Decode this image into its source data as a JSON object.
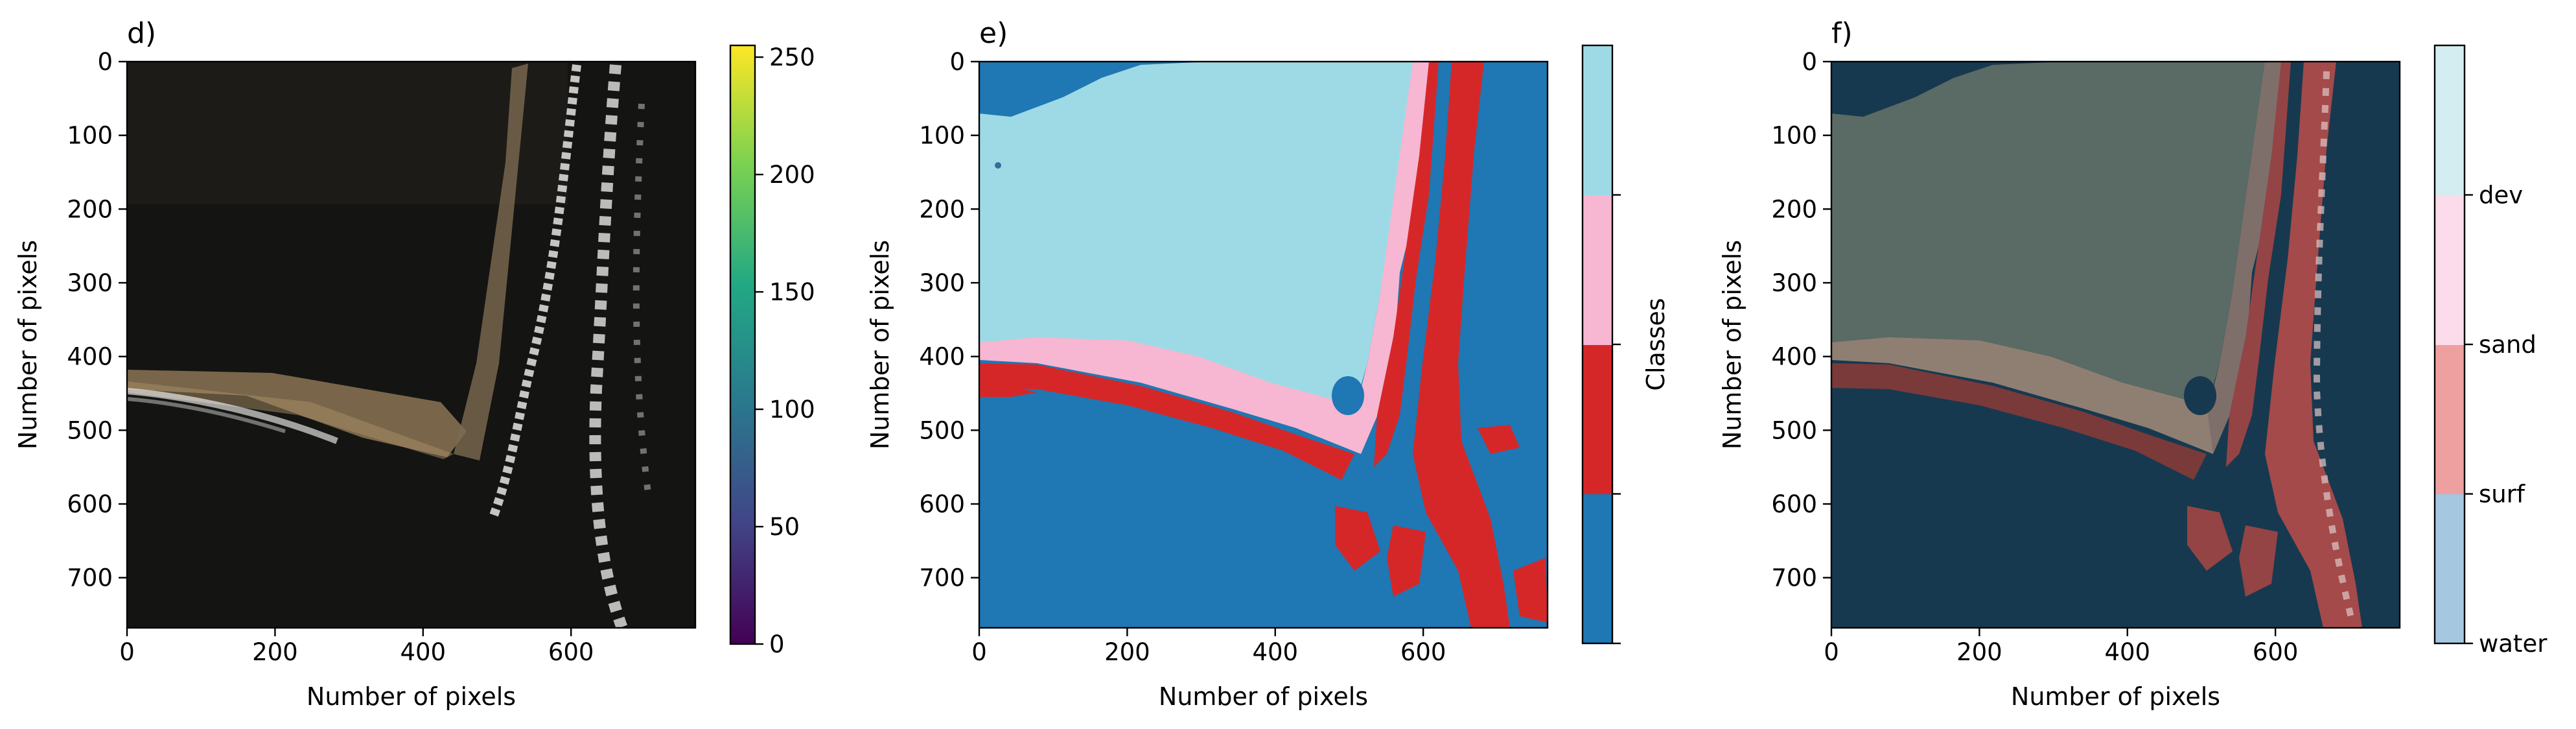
{
  "colors": {
    "water": "#1f77b4",
    "surf": "#d62728",
    "sand": "#f7b6d2",
    "dev": "#9edae5",
    "overlay_water": "#a6c7e0",
    "overlay_surf": "#ee9f9f",
    "overlay_sand": "#fcdbea",
    "overlay_dev": "#d4edf1",
    "photo_dark": "#141412",
    "photo_beach": "#8b7455",
    "photo_surf": "#d8d8d8",
    "viridis_stops": [
      "#440154",
      "#414487",
      "#2a788e",
      "#22a884",
      "#7ad151",
      "#fde725"
    ]
  },
  "chart_data": [
    {
      "type": "heatmap",
      "panel": "d)",
      "title": "d)",
      "xlabel": "Number of pixels",
      "ylabel": "Number of pixels",
      "xlim": [
        0,
        768
      ],
      "ylim": [
        768,
        0
      ],
      "xticks": [
        "0",
        "200",
        "400",
        "600"
      ],
      "yticks": [
        "0",
        "100",
        "200",
        "300",
        "400",
        "500",
        "600",
        "700"
      ],
      "colorbar": {
        "colormap": "viridis",
        "range": [
          0,
          255
        ],
        "ticks": [
          "0",
          "50",
          "100",
          "150",
          "200",
          "250"
        ]
      }
    },
    {
      "type": "heatmap",
      "panel": "e)",
      "title": "e)",
      "xlabel": "Number of pixels",
      "ylabel": "Number of pixels",
      "xlim": [
        0,
        768
      ],
      "ylim": [
        768,
        0
      ],
      "xticks": [
        "0",
        "200",
        "400",
        "600"
      ],
      "yticks": [
        "0",
        "100",
        "200",
        "300",
        "400",
        "500",
        "600",
        "700"
      ],
      "classes": [
        "water",
        "surf",
        "sand",
        "dev"
      ],
      "colorbar": {
        "label": "Classes",
        "ticks": []
      }
    },
    {
      "type": "heatmap",
      "panel": "f)",
      "title": "f)",
      "xlabel": "Number of pixels",
      "ylabel": "Number of pixels",
      "xlim": [
        0,
        768
      ],
      "ylim": [
        768,
        0
      ],
      "xticks": [
        "0",
        "200",
        "400",
        "600"
      ],
      "yticks": [
        "0",
        "100",
        "200",
        "300",
        "400",
        "500",
        "600",
        "700"
      ],
      "colorbar": {
        "ticks": [
          "water",
          "surf",
          "sand",
          "dev"
        ]
      }
    }
  ]
}
